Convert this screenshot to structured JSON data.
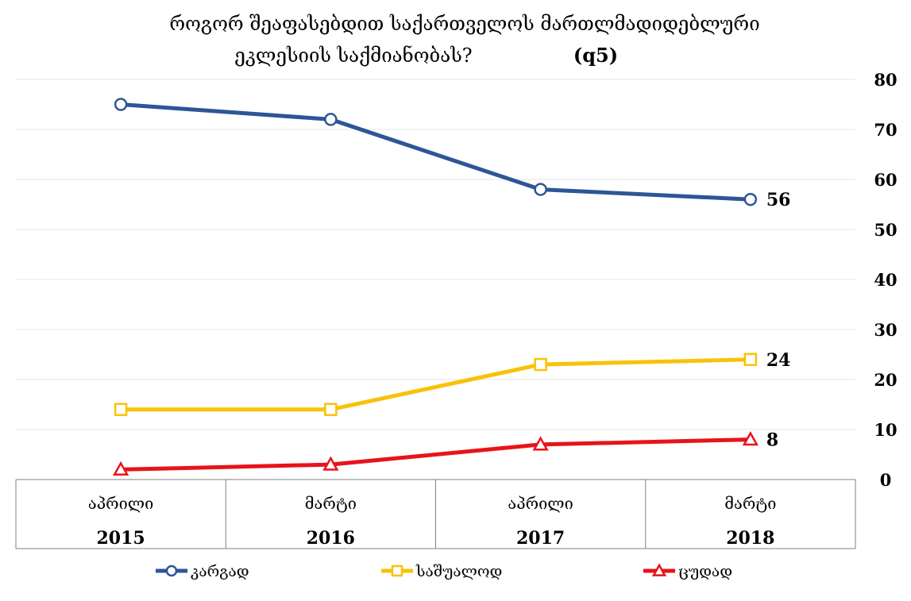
{
  "chart_data": {
    "type": "line",
    "title": "როგორ შეაფასებდით საქართველოს მართლმადიდებლური ეკლესიის საქმიანობას? (q5)",
    "title_lines": [
      "როგორ შეაფასებდით საქართველოს მართლმადიდებლური",
      "ეკლესიის საქმიანობას?"
    ],
    "title_code": "(q5)",
    "categories": [
      {
        "month": "აპრილი",
        "year": "2015"
      },
      {
        "month": "მარტი",
        "year": "2016"
      },
      {
        "month": "აპრილი",
        "year": "2017"
      },
      {
        "month": "მარტი",
        "year": "2018"
      }
    ],
    "series": [
      {
        "name": "კარგად",
        "values": [
          75,
          72,
          58,
          56
        ],
        "color": "#2E5597",
        "marker": "circle",
        "end_label": "56"
      },
      {
        "name": "საშუალოდ",
        "values": [
          14,
          14,
          23,
          24
        ],
        "color": "#F9C20A",
        "marker": "square",
        "end_label": "24"
      },
      {
        "name": "ცუდად",
        "values": [
          2,
          3,
          7,
          8
        ],
        "color": "#E8131B",
        "marker": "triangle",
        "end_label": "8"
      }
    ],
    "y_axis": {
      "side": "right",
      "ylim": [
        0,
        80
      ],
      "ticks": [
        "0",
        "10",
        "20",
        "30",
        "40",
        "50",
        "60",
        "70",
        "80"
      ]
    },
    "grid": true,
    "legend_position": "bottom"
  }
}
